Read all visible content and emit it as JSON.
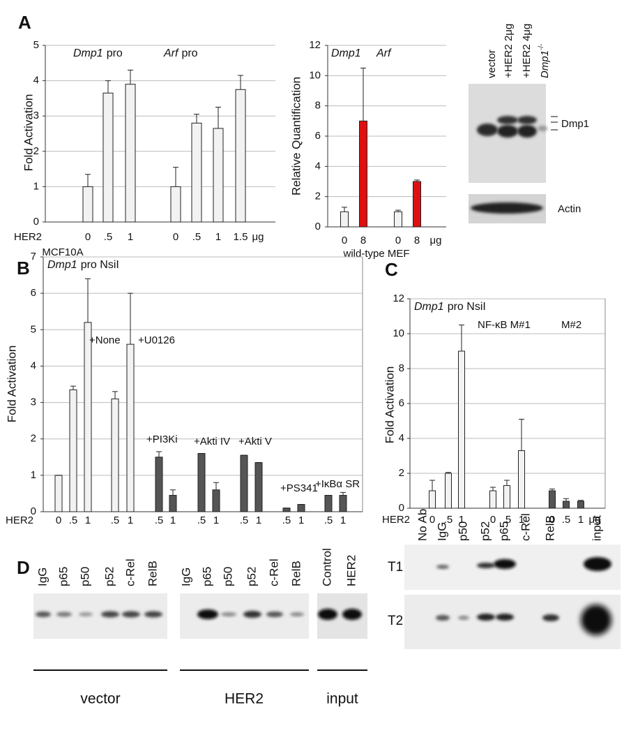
{
  "panel_labels": [
    "A",
    "B",
    "C",
    "D"
  ],
  "chart_data": [
    {
      "type": "bar",
      "y_label": "Fold Activation",
      "ylim": [
        0,
        5
      ],
      "yticks": [
        0,
        1,
        2,
        3,
        4,
        5
      ],
      "grid": true,
      "groups": [
        {
          "gene": "Dmp1",
          "label": "pro"
        },
        {
          "gene": "Arf",
          "label": "pro"
        }
      ],
      "x_prefix": "HER2",
      "categories": [
        "0",
        ".5",
        "1",
        "0",
        ".5",
        "1",
        "1.5"
      ],
      "x_unit": "μg",
      "x_label": "MCF10A",
      "values": [
        1.0,
        3.65,
        3.9,
        1.0,
        2.8,
        2.65,
        3.75
      ],
      "errors": [
        0.35,
        0.35,
        0.4,
        0.55,
        0.25,
        0.6,
        0.4
      ],
      "colors": [
        "#f2f2f2",
        "#f2f2f2",
        "#f2f2f2",
        "#f2f2f2",
        "#f2f2f2",
        "#f2f2f2",
        "#f2f2f2"
      ]
    },
    {
      "type": "bar",
      "y_label": "Relative Quantification",
      "ylim": [
        0,
        12
      ],
      "yticks": [
        0,
        2,
        4,
        6,
        8,
        10,
        12
      ],
      "grid": true,
      "groups": [
        {
          "gene": "Dmp1"
        },
        {
          "gene": "Arf"
        }
      ],
      "categories": [
        "0",
        "8",
        "0",
        "8"
      ],
      "x_unit": "μg",
      "x_label": "wild-type MEF",
      "values": [
        1.0,
        7.0,
        1.0,
        3.0
      ],
      "errors": [
        0.3,
        3.5,
        0.1,
        0.1
      ],
      "colors": [
        "#f2f2f2",
        "#dd1111",
        "#f2f2f2",
        "#dd1111"
      ]
    },
    {
      "type": "bar",
      "y_label": "Fold Activation",
      "ylim": [
        0,
        7
      ],
      "yticks": [
        0,
        1,
        2,
        3,
        4,
        5,
        6,
        7
      ],
      "grid": true,
      "title": {
        "gene": "Dmp1",
        "label": "pro NsiI"
      },
      "x_prefix": "HER2",
      "categories": [
        "0",
        ".5",
        "1",
        ".5",
        "1",
        ".5",
        "1",
        ".5",
        "1",
        ".5",
        "1",
        ".5",
        "1",
        ".5",
        "1"
      ],
      "values": [
        1.0,
        3.35,
        5.2,
        3.1,
        4.6,
        1.5,
        0.45,
        1.6,
        0.6,
        1.55,
        1.35,
        0.1,
        0.2,
        0.45,
        0.45
      ],
      "errors": [
        0,
        0.1,
        1.2,
        0.2,
        1.4,
        0.15,
        0.15,
        0,
        0.2,
        0,
        0,
        0,
        0,
        0,
        0.08
      ],
      "colors": [
        "#f2f2f2",
        "#f2f2f2",
        "#f2f2f2",
        "#f2f2f2",
        "#f2f2f2",
        "#555555",
        "#555555",
        "#555555",
        "#555555",
        "#555555",
        "#555555",
        "#555555",
        "#555555",
        "#555555",
        "#555555"
      ],
      "annotations": [
        "+None",
        "+U0126",
        "+PI3Ki",
        "+Akti IV",
        "+Akti V",
        "+PS341",
        "+IκBα SR"
      ]
    },
    {
      "type": "bar",
      "y_label": "Fold Activation",
      "ylim": [
        0,
        12
      ],
      "yticks": [
        0,
        2,
        4,
        6,
        8,
        10,
        12
      ],
      "grid": true,
      "title": {
        "gene": "Dmp1",
        "label": "pro NsiI"
      },
      "x_prefix": "HER2",
      "categories": [
        "0",
        ".5",
        "1",
        "0",
        ".5",
        "1",
        "0",
        ".5",
        "1"
      ],
      "x_unit": "μg",
      "values": [
        1.0,
        2.0,
        9.0,
        1.0,
        1.3,
        3.3,
        1.0,
        0.4,
        0.4
      ],
      "errors": [
        0.6,
        0.05,
        1.5,
        0.2,
        0.3,
        1.8,
        0.1,
        0.15,
        0.05
      ],
      "colors": [
        "#f2f2f2",
        "#f2f2f2",
        "#f2f2f2",
        "#f2f2f2",
        "#f2f2f2",
        "#f2f2f2",
        "#555555",
        "#555555",
        "#555555"
      ],
      "annotations": [
        "NF-κB M#1",
        "M#2"
      ]
    }
  ],
  "blot_a": {
    "lanes": [
      "vector",
      "+HER2 2μg",
      "+HER2 4μg"
    ],
    "knockout": {
      "gene": "Dmp1",
      "genotype": "-/-"
    },
    "bands": [
      "Dmp1",
      "Actin"
    ]
  },
  "blot_d": {
    "vector_lanes": [
      "IgG",
      "p65",
      "p50",
      "p52",
      "c-Rel",
      "RelB"
    ],
    "her2_lanes": [
      "IgG",
      "p65",
      "p50",
      "p52",
      "c-Rel",
      "RelB"
    ],
    "input_lanes": [
      "Control",
      "HER2"
    ],
    "groups": [
      "vector",
      "HER2",
      "input"
    ],
    "right_lanes": [
      "No Ab",
      "IgG",
      "p50",
      "p52",
      "p65",
      "c-Rel",
      "RelB",
      "input"
    ],
    "rows": [
      "T1",
      "T2"
    ]
  }
}
